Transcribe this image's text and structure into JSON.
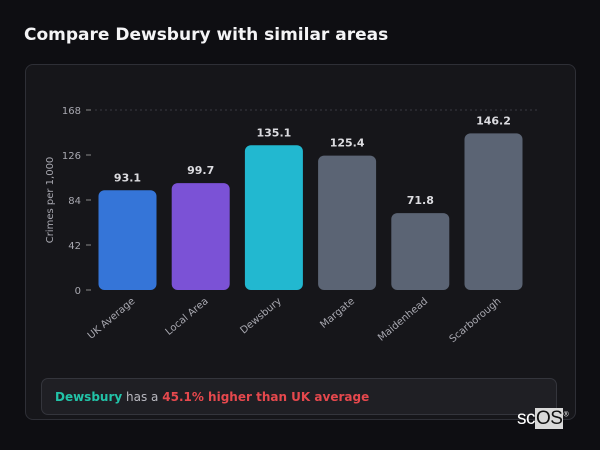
{
  "title": "Compare Dewsbury with similar areas",
  "chart_data": {
    "type": "bar",
    "title": "",
    "xlabel": "",
    "ylabel": "Crimes per 1,000",
    "ylim": [
      0,
      168
    ],
    "yticks": [
      0,
      42,
      84,
      126,
      168
    ],
    "grid": "dashed line at top tick only",
    "categories": [
      "UK Average",
      "Local Area",
      "Dewsbury",
      "Margate",
      "Maidenhead",
      "Scarborough"
    ],
    "values": [
      93.1,
      99.7,
      135.1,
      125.4,
      71.8,
      146.2
    ],
    "data_labels": [
      "93.1",
      "99.7",
      "135.1",
      "125.4",
      "71.8",
      "146.2"
    ],
    "colors": [
      "#3575d8",
      "#7b52d6",
      "#22b8d0",
      "#5b6474",
      "#5b6474",
      "#5b6474"
    ]
  },
  "footer": {
    "area": "Dewsbury",
    "middle": "has a",
    "comparison": "45.1% higher than UK average"
  },
  "logo": {
    "prefix": "sc",
    "boxed": "OS",
    "mark": "®"
  }
}
